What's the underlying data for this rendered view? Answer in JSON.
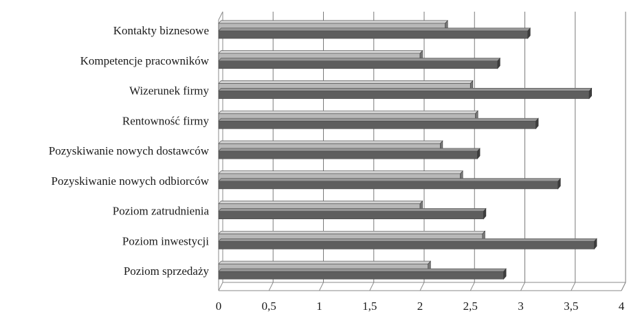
{
  "chart_data": {
    "type": "bar",
    "orientation": "horizontal",
    "style": "3d",
    "categories": [
      "Kontakty biznesowe",
      "Kompetencje pracowników",
      "Wizerunek firmy",
      "Rentowność firmy",
      "Pozyskiwanie nowych dostawców",
      "Pozyskiwanie nowych odbiorców",
      "Poziom zatrudnienia",
      "Poziom inwestycji",
      "Poziom sprzedaży"
    ],
    "series": [
      {
        "color": "#b8b8b8",
        "values": [
          2.25,
          2.0,
          2.5,
          2.55,
          2.2,
          2.4,
          2.0,
          2.62,
          2.08
        ]
      },
      {
        "color": "#5e5e5e",
        "values": [
          3.07,
          2.77,
          3.68,
          3.15,
          2.57,
          3.37,
          2.63,
          3.73,
          2.83
        ]
      }
    ],
    "x_ticks": [
      "0",
      "0,5",
      "1",
      "1,5",
      "2",
      "2,5",
      "3",
      "3,5",
      "4"
    ],
    "xlim": [
      0,
      4
    ],
    "title": "",
    "xlabel": "",
    "ylabel": "",
    "grid": "vertical",
    "legend": "none"
  }
}
